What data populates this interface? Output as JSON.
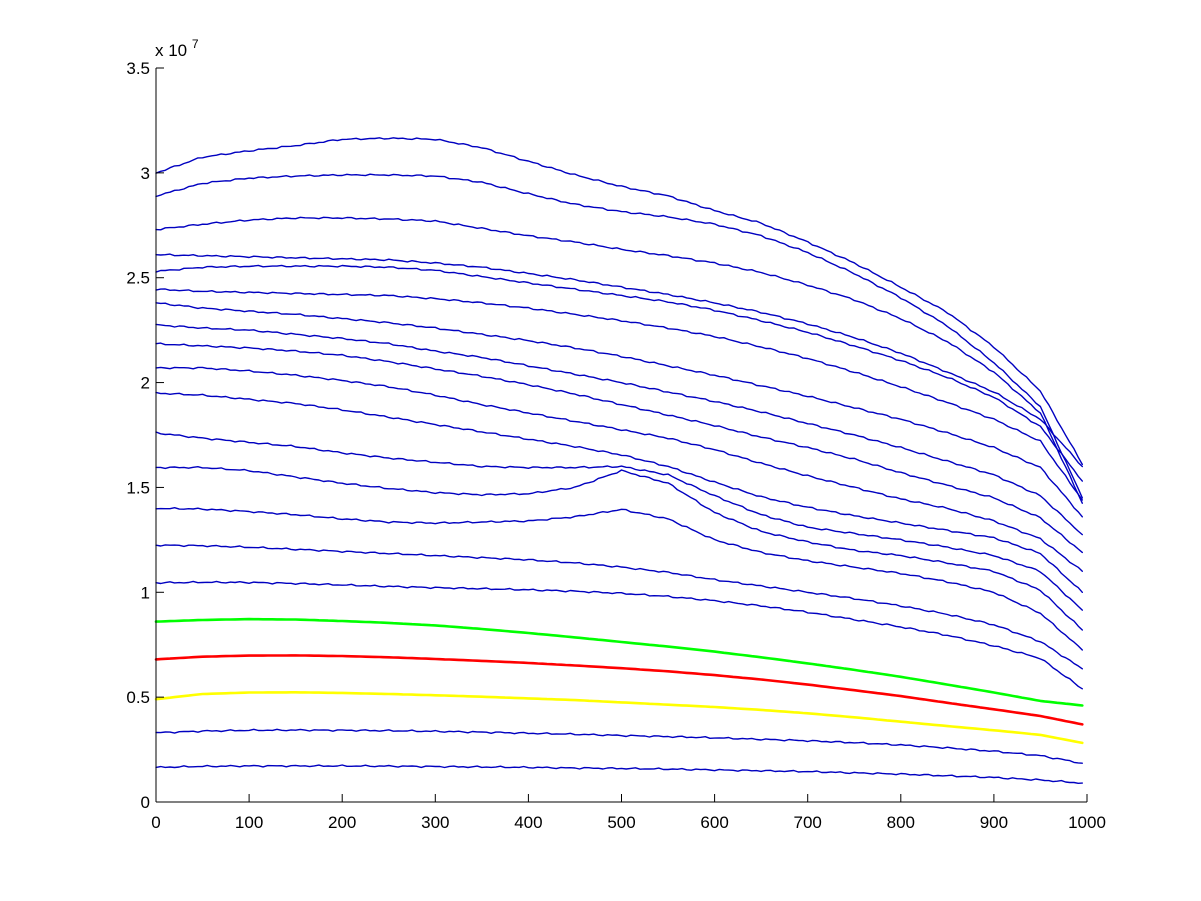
{
  "chart_data": {
    "type": "line",
    "title": "",
    "xlabel": "",
    "ylabel": "",
    "xlim": [
      0,
      1000
    ],
    "ylim": [
      0,
      35000000
    ],
    "y_multiplier_label": {
      "base": "x 10",
      "exponent": "7"
    },
    "x_ticks": [
      0,
      100,
      200,
      300,
      400,
      500,
      600,
      700,
      800,
      900,
      1000
    ],
    "x_tick_labels": [
      "0",
      "100",
      "200",
      "300",
      "400",
      "500",
      "600",
      "700",
      "800",
      "900",
      "1000"
    ],
    "y_ticks": [
      0,
      5000000,
      10000000,
      15000000,
      20000000,
      25000000,
      30000000,
      35000000
    ],
    "y_tick_labels": [
      "0",
      "0.5",
      "1",
      "1.5",
      "2",
      "2.5",
      "3",
      "3.5"
    ],
    "grid": false,
    "legend": "none",
    "series": [
      {
        "color": "#0000c0",
        "width": 1.4,
        "x": [
          0,
          50,
          100,
          150,
          200,
          250,
          300,
          350,
          400,
          450,
          500,
          550,
          600,
          650,
          700,
          750,
          800,
          850,
          900,
          950,
          995
        ],
        "y": [
          1650000,
          1700000,
          1720000,
          1720000,
          1720000,
          1710000,
          1690000,
          1670000,
          1650000,
          1620000,
          1600000,
          1570000,
          1530000,
          1490000,
          1450000,
          1390000,
          1330000,
          1250000,
          1170000,
          1050000,
          900000
        ]
      },
      {
        "color": "#0000c0",
        "width": 1.4,
        "x": [
          0,
          50,
          100,
          150,
          200,
          250,
          300,
          350,
          400,
          450,
          500,
          550,
          600,
          650,
          700,
          750,
          800,
          850,
          900,
          950,
          995
        ],
        "y": [
          3300000,
          3380000,
          3420000,
          3430000,
          3420000,
          3400000,
          3370000,
          3330000,
          3280000,
          3230000,
          3170000,
          3120000,
          3060000,
          2990000,
          2920000,
          2830000,
          2720000,
          2580000,
          2420000,
          2210000,
          1850000
        ]
      },
      {
        "color": "#ffff00",
        "width": 2.6,
        "x": [
          0,
          50,
          100,
          150,
          200,
          250,
          300,
          350,
          400,
          450,
          500,
          550,
          600,
          650,
          700,
          750,
          800,
          850,
          900,
          950,
          995
        ],
        "y": [
          4900000,
          5150000,
          5220000,
          5230000,
          5200000,
          5150000,
          5090000,
          5020000,
          4940000,
          4860000,
          4750000,
          4640000,
          4530000,
          4390000,
          4230000,
          4040000,
          3830000,
          3620000,
          3420000,
          3200000,
          2820000
        ]
      },
      {
        "color": "#ff0000",
        "width": 2.6,
        "x": [
          0,
          50,
          100,
          150,
          200,
          250,
          300,
          350,
          400,
          450,
          500,
          550,
          600,
          650,
          700,
          750,
          800,
          850,
          900,
          950,
          995
        ],
        "y": [
          6800000,
          6930000,
          6980000,
          6990000,
          6960000,
          6900000,
          6820000,
          6730000,
          6630000,
          6510000,
          6380000,
          6230000,
          6050000,
          5840000,
          5600000,
          5330000,
          5050000,
          4730000,
          4420000,
          4100000,
          3700000
        ]
      },
      {
        "color": "#00ff00",
        "width": 2.6,
        "x": [
          0,
          50,
          100,
          150,
          200,
          250,
          300,
          350,
          400,
          450,
          500,
          550,
          600,
          650,
          700,
          750,
          800,
          850,
          900,
          950,
          995
        ],
        "y": [
          8600000,
          8680000,
          8720000,
          8700000,
          8630000,
          8540000,
          8420000,
          8250000,
          8060000,
          7850000,
          7630000,
          7410000,
          7170000,
          6900000,
          6610000,
          6300000,
          5970000,
          5600000,
          5220000,
          4820000,
          4600000
        ]
      },
      {
        "color": "#0000c0",
        "width": 1.4,
        "x": [
          0,
          50,
          100,
          150,
          200,
          250,
          300,
          350,
          400,
          450,
          500,
          550,
          600,
          650,
          700,
          750,
          800,
          850,
          900,
          950,
          995
        ],
        "y": [
          10450000,
          10480000,
          10470000,
          10420000,
          10350000,
          10280000,
          10220000,
          10170000,
          10120000,
          10050000,
          9950000,
          9800000,
          9600000,
          9350000,
          9050000,
          8700000,
          8350000,
          7950000,
          7450000,
          6850000,
          5400000
        ]
      },
      {
        "color": "#0000c0",
        "width": 1.4,
        "x": [
          0,
          50,
          100,
          150,
          200,
          250,
          300,
          350,
          400,
          450,
          500,
          550,
          600,
          650,
          700,
          750,
          800,
          850,
          900,
          950,
          995
        ],
        "y": [
          12250000,
          12220000,
          12150000,
          12050000,
          11950000,
          11850000,
          11750000,
          11650000,
          11550000,
          11400000,
          11200000,
          10950000,
          10600000,
          10300000,
          10000000,
          9700000,
          9350000,
          8950000,
          8450000,
          7650000,
          6350000
        ]
      },
      {
        "color": "#0000c0",
        "width": 1.4,
        "x": [
          0,
          50,
          100,
          150,
          200,
          250,
          300,
          350,
          400,
          450,
          500,
          550,
          600,
          650,
          700,
          750,
          800,
          850,
          900,
          950,
          995
        ],
        "y": [
          14000000,
          13970000,
          13850000,
          13700000,
          13500000,
          13350000,
          13300000,
          13350000,
          13400000,
          13600000,
          13950000,
          13500000,
          12500000,
          11900000,
          11500000,
          11200000,
          10900000,
          10500000,
          10000000,
          9000000,
          7250000
        ]
      },
      {
        "color": "#0000c0",
        "width": 1.4,
        "x": [
          0,
          50,
          100,
          150,
          200,
          250,
          300,
          350,
          400,
          450,
          500,
          550,
          600,
          650,
          700,
          750,
          800,
          850,
          900,
          950,
          995
        ],
        "y": [
          15950000,
          15950000,
          15800000,
          15500000,
          15200000,
          14950000,
          14750000,
          14650000,
          14700000,
          15000000,
          15800000,
          15200000,
          13800000,
          12900000,
          12400000,
          12000000,
          11750000,
          11400000,
          11000000,
          10100000,
          8200000
        ]
      },
      {
        "color": "#0000c0",
        "width": 1.4,
        "x": [
          0,
          50,
          100,
          150,
          200,
          250,
          300,
          350,
          400,
          450,
          500,
          550,
          600,
          650,
          700,
          750,
          800,
          850,
          900,
          950,
          995
        ],
        "y": [
          17600000,
          17350000,
          17150000,
          16950000,
          16650000,
          16400000,
          16200000,
          16000000,
          15950000,
          15950000,
          16000000,
          15600000,
          14600000,
          13700000,
          13100000,
          12800000,
          12500000,
          12150000,
          11750000,
          11000000,
          9150000
        ]
      },
      {
        "color": "#0000c0",
        "width": 1.4,
        "x": [
          0,
          50,
          100,
          150,
          200,
          250,
          300,
          350,
          400,
          450,
          500,
          550,
          600,
          650,
          700,
          750,
          800,
          850,
          900,
          950,
          995
        ],
        "y": [
          19500000,
          19400000,
          19200000,
          19000000,
          18700000,
          18350000,
          18000000,
          17650000,
          17300000,
          16950000,
          16550000,
          16000000,
          15250000,
          14550000,
          14050000,
          13650000,
          13300000,
          12950000,
          12600000,
          11850000,
          10000000
        ]
      },
      {
        "color": "#0000c0",
        "width": 1.4,
        "x": [
          0,
          50,
          100,
          150,
          200,
          250,
          300,
          350,
          400,
          450,
          500,
          550,
          600,
          650,
          700,
          750,
          800,
          850,
          900,
          950,
          995
        ],
        "y": [
          20700000,
          20700000,
          20550000,
          20350000,
          20100000,
          19800000,
          19400000,
          18950000,
          18550000,
          18150000,
          17750000,
          17350000,
          16800000,
          16150000,
          15550000,
          15000000,
          14450000,
          14000000,
          13400000,
          12550000,
          11000000
        ]
      },
      {
        "color": "#0000c0",
        "width": 1.4,
        "x": [
          0,
          50,
          100,
          150,
          200,
          250,
          300,
          350,
          400,
          450,
          500,
          550,
          600,
          650,
          700,
          750,
          800,
          850,
          900,
          950,
          995
        ],
        "y": [
          21850000,
          21750000,
          21650000,
          21500000,
          21300000,
          21000000,
          20650000,
          20300000,
          19900000,
          19450000,
          18950000,
          18450000,
          17950000,
          17400000,
          16900000,
          16350000,
          15700000,
          15100000,
          14500000,
          13550000,
          11900000
        ]
      },
      {
        "color": "#0000c0",
        "width": 1.4,
        "x": [
          0,
          50,
          100,
          150,
          200,
          250,
          300,
          350,
          400,
          450,
          500,
          550,
          600,
          650,
          700,
          750,
          800,
          850,
          900,
          950,
          995
        ],
        "y": [
          22750000,
          22600000,
          22500000,
          22300000,
          22100000,
          21850000,
          21500000,
          21200000,
          20800000,
          20400000,
          20000000,
          19550000,
          19100000,
          18600000,
          18050000,
          17500000,
          16900000,
          16250000,
          15600000,
          14600000,
          12750000
        ]
      },
      {
        "color": "#0000c0",
        "width": 1.4,
        "x": [
          0,
          50,
          100,
          150,
          200,
          250,
          300,
          350,
          400,
          450,
          500,
          550,
          600,
          650,
          700,
          750,
          800,
          850,
          900,
          950,
          995
        ],
        "y": [
          23800000,
          23550000,
          23400000,
          23250000,
          23050000,
          22850000,
          22600000,
          22300000,
          22000000,
          21650000,
          21250000,
          20800000,
          20350000,
          19850000,
          19350000,
          18800000,
          18250000,
          17600000,
          16900000,
          15950000,
          13600000
        ]
      },
      {
        "color": "#0000c0",
        "width": 1.4,
        "x": [
          0,
          50,
          100,
          150,
          200,
          250,
          300,
          350,
          400,
          450,
          500,
          550,
          600,
          650,
          700,
          750,
          800,
          850,
          900,
          950,
          995
        ],
        "y": [
          24450000,
          24350000,
          24300000,
          24250000,
          24200000,
          24150000,
          24000000,
          23800000,
          23550000,
          23250000,
          22950000,
          22600000,
          22200000,
          21700000,
          21150000,
          20500000,
          19800000,
          19050000,
          18250000,
          17200000,
          14400000
        ]
      },
      {
        "color": "#0000c0",
        "width": 1.4,
        "x": [
          0,
          50,
          100,
          150,
          200,
          250,
          300,
          350,
          400,
          450,
          500,
          550,
          600,
          650,
          700,
          750,
          800,
          850,
          900,
          950,
          995
        ],
        "y": [
          25300000,
          25500000,
          25550000,
          25550000,
          25550000,
          25500000,
          25350000,
          25050000,
          24750000,
          24450000,
          24150000,
          23850000,
          23450000,
          22950000,
          22400000,
          21750000,
          21050000,
          20250000,
          19300000,
          17900000,
          15300000
        ]
      },
      {
        "color": "#0000c0",
        "width": 1.4,
        "x": [
          0,
          50,
          100,
          150,
          200,
          250,
          300,
          350,
          400,
          450,
          500,
          550,
          600,
          650,
          700,
          750,
          800,
          850,
          900,
          950,
          995
        ],
        "y": [
          26100000,
          26050000,
          26000000,
          25950000,
          25900000,
          25850000,
          25700000,
          25500000,
          25200000,
          24900000,
          24550000,
          24200000,
          23800000,
          23350000,
          22800000,
          22150000,
          21400000,
          20500000,
          19550000,
          18250000,
          16000000
        ]
      },
      {
        "color": "#0000c0",
        "width": 1.4,
        "x": [
          0,
          50,
          100,
          150,
          200,
          250,
          300,
          350,
          400,
          450,
          500,
          550,
          600,
          650,
          700,
          750,
          800,
          850,
          900,
          950,
          995
        ],
        "y": [
          27300000,
          27550000,
          27750000,
          27850000,
          27850000,
          27800000,
          27700000,
          27350000,
          27000000,
          26700000,
          26350000,
          26050000,
          25700000,
          25250000,
          24650000,
          23950000,
          23050000,
          21950000,
          20500000,
          18550000,
          14250000
        ]
      },
      {
        "color": "#0000c0",
        "width": 1.4,
        "x": [
          0,
          50,
          100,
          150,
          200,
          250,
          300,
          350,
          400,
          450,
          500,
          550,
          600,
          650,
          700,
          750,
          800,
          850,
          900,
          950,
          995
        ],
        "y": [
          28900000,
          29500000,
          29750000,
          29850000,
          29900000,
          29900000,
          29850000,
          29550000,
          29000000,
          28500000,
          28150000,
          27900000,
          27550000,
          27000000,
          26200000,
          25200000,
          24050000,
          22700000,
          20950000,
          18850000,
          14500000
        ]
      },
      {
        "color": "#0000c0",
        "width": 1.4,
        "x": [
          0,
          50,
          100,
          150,
          200,
          250,
          300,
          350,
          400,
          450,
          500,
          550,
          600,
          650,
          700,
          750,
          800,
          850,
          900,
          950,
          995
        ],
        "y": [
          30000000,
          30750000,
          31050000,
          31300000,
          31600000,
          31650000,
          31600000,
          31200000,
          30550000,
          29900000,
          29350000,
          28900000,
          28200000,
          27600000,
          26700000,
          25700000,
          24550000,
          23350000,
          21700000,
          19600000,
          16100000
        ]
      }
    ]
  }
}
